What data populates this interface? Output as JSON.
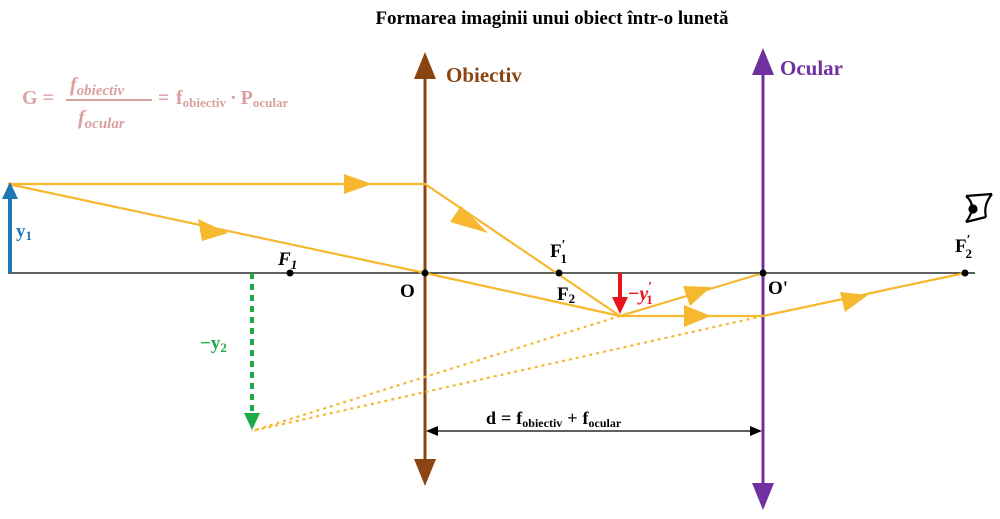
{
  "title": "Formarea imaginii unui obiect într-o lunetă",
  "formula": {
    "lhs": "G =",
    "num_f": "f",
    "num_sub": "obiectiv",
    "den_f": "f",
    "den_sub": "ocular",
    "eq": "=",
    "r1": "f",
    "r1_sub": "obiectiv",
    "dot": "·",
    "r2": "P",
    "r2_sub": "ocular"
  },
  "lenses": {
    "objective": {
      "label": "Obiectiv",
      "color": "#8b4513"
    },
    "eyepiece": {
      "label": "Ocular",
      "color": "#7030a0"
    }
  },
  "points": {
    "F1": {
      "letter": "F",
      "sub": "1"
    },
    "O": "O",
    "F1p": {
      "letter": "F",
      "prime": "′",
      "sub": "1"
    },
    "F2": {
      "letter": "F",
      "sub": "2"
    },
    "Op": "O'",
    "F2p": {
      "letter": "F",
      "prime": "′",
      "sub": "2"
    }
  },
  "labels": {
    "y1": {
      "letter": "y",
      "sub": "1",
      "color": "#1f77b4"
    },
    "y1p": {
      "minus": "−",
      "letter": "y",
      "prime": "′",
      "sub": "1",
      "color": "#e8141b"
    },
    "y2": {
      "minus": "−",
      "letter": "y",
      "sub": "2",
      "color": "#1faa4a"
    }
  },
  "distance": {
    "d": "d",
    "eq": "=",
    "f1": "f",
    "f1_sub": "obiectiv",
    "plus": "+",
    "f2": "f",
    "f2_sub": "ocular"
  },
  "colors": {
    "ray": "#f5b82e",
    "axis": "#000000"
  },
  "icons": {
    "eye": "eye-icon"
  }
}
